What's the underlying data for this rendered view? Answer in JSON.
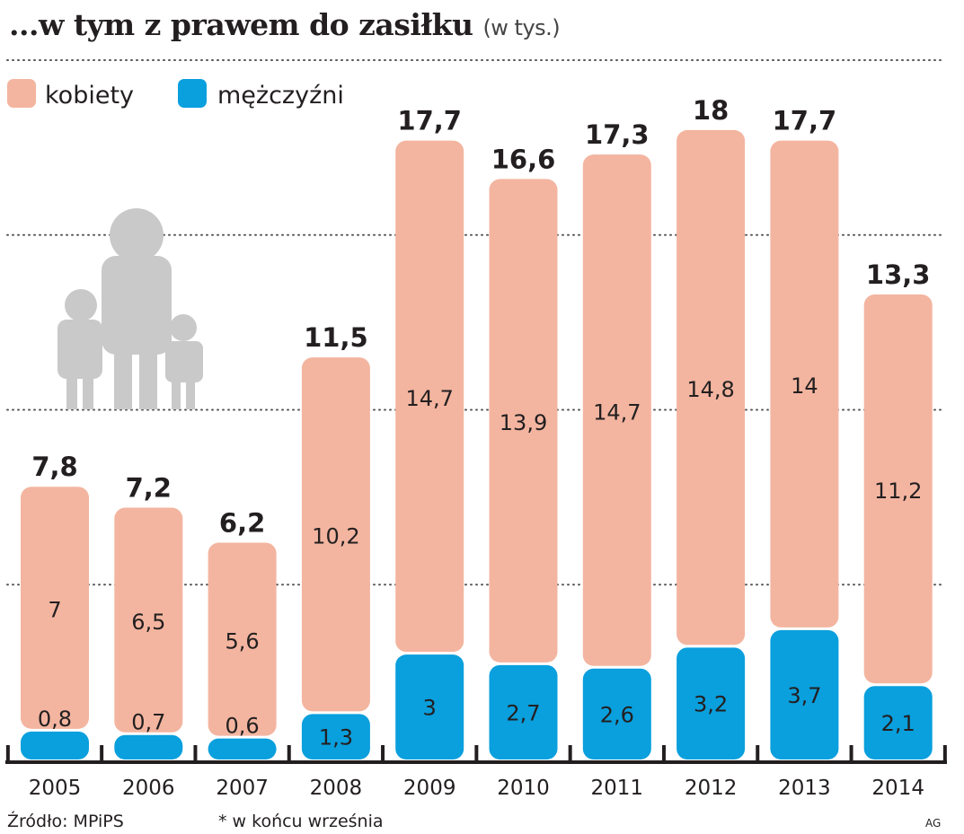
{
  "chart_data": {
    "type": "bar",
    "stacked": true,
    "title": "...w tym z prawem do zasiłku",
    "subtitle": "(w tys.)",
    "categories": [
      "2005",
      "2006",
      "2007",
      "2008",
      "2009",
      "2010",
      "2011",
      "2012",
      "2013",
      "2014"
    ],
    "series": [
      {
        "name": "mężczyźni",
        "color": "#0a9fdd",
        "values": [
          0.8,
          0.7,
          0.6,
          1.3,
          3,
          2.7,
          2.6,
          3.2,
          3.7,
          2.1
        ],
        "labels": [
          "0,8",
          "0,7",
          "0,6",
          "1,3",
          "3",
          "2,7",
          "2,6",
          "3,2",
          "3,7",
          "2,1"
        ]
      },
      {
        "name": "kobiety",
        "color": "#f3b5a0",
        "values": [
          7,
          6.5,
          5.6,
          10.2,
          14.7,
          13.9,
          14.7,
          14.8,
          14,
          11.2
        ],
        "labels": [
          "7",
          "6,5",
          "5,6",
          "10,2",
          "14,7",
          "13,9",
          "14,7",
          "14,8",
          "14",
          "11,2"
        ]
      }
    ],
    "totals": [
      7.8,
      7.2,
      6.2,
      11.5,
      17.7,
      16.6,
      17.3,
      18,
      17.7,
      13.3
    ],
    "total_labels": [
      "7,8",
      "7,2",
      "6,2",
      "11,5",
      "17,7",
      "16,6",
      "17,3",
      "18",
      "17,7",
      "13,3"
    ],
    "ylim": [
      0,
      20
    ],
    "grid": true,
    "legend": "top-left"
  },
  "legend": {
    "kobiety": "kobiety",
    "mezczyzni": "mężczyźni"
  },
  "footer": {
    "source": "Źródło: MPiPS",
    "note": "* w końcu września",
    "credit": "AG"
  }
}
